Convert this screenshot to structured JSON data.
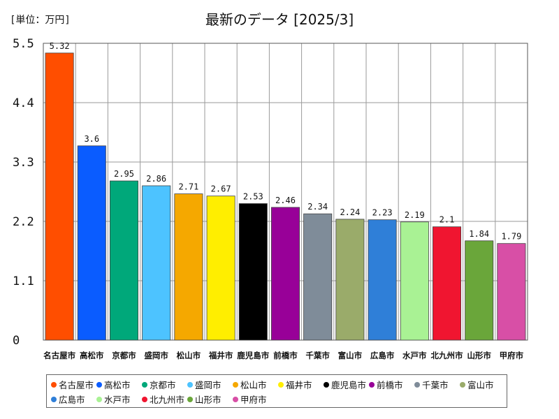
{
  "header": {
    "unit_label": "[単位：万円]",
    "title": "最新のデータ [2025/3]"
  },
  "chart_data": {
    "type": "bar",
    "title": "最新のデータ [2025/3]",
    "unit": "[単位：万円]",
    "ylim": [
      0,
      5.5
    ],
    "yticks": [
      "0",
      "1.1",
      "2.2",
      "3.3",
      "4.4",
      "5.5"
    ],
    "grid": true,
    "legend_position": "bottom",
    "categories": [
      "名古屋市",
      "高松市",
      "京都市",
      "盛岡市",
      "松山市",
      "福井市",
      "鹿児島市",
      "前橋市",
      "千葉市",
      "富山市",
      "広島市",
      "水戸市",
      "北九州市",
      "山形市",
      "甲府市"
    ],
    "values": [
      5.32,
      3.6,
      2.95,
      2.86,
      2.71,
      2.67,
      2.53,
      2.46,
      2.34,
      2.24,
      2.23,
      2.19,
      2.1,
      1.84,
      1.79
    ],
    "value_labels": [
      "5.32",
      "3.6",
      "2.95",
      "2.86",
      "2.71",
      "2.67",
      "2.53",
      "2.46",
      "2.34",
      "2.24",
      "2.23",
      "2.19",
      "2.1",
      "1.84",
      "1.79"
    ],
    "colors": [
      "#ff4e00",
      "#0a5cff",
      "#00a87a",
      "#4dc3ff",
      "#f5a800",
      "#ffee00",
      "#000000",
      "#980098",
      "#7f8c99",
      "#9aab6a",
      "#2f7fd8",
      "#a9f294",
      "#f01530",
      "#6aa63a",
      "#d84fa6"
    ]
  }
}
